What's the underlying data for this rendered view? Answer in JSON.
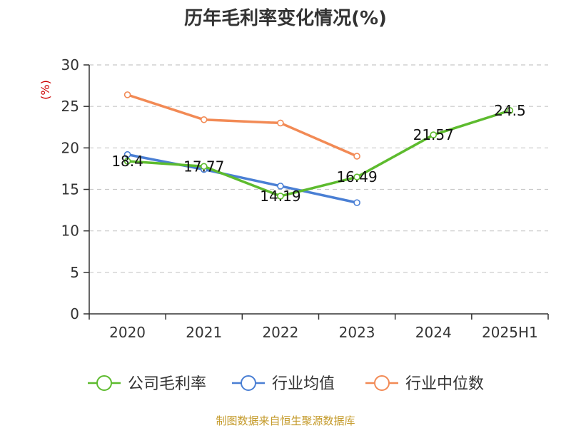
{
  "chart_data": {
    "type": "line",
    "title": "历年毛利率变化情况(%)",
    "ylabel": "(%)",
    "categories": [
      "2020",
      "2021",
      "2022",
      "2023",
      "2024",
      "2025H1"
    ],
    "ylim": [
      0,
      30
    ],
    "yticks": [
      0,
      5,
      10,
      15,
      20,
      25,
      30
    ],
    "grid": true,
    "legend_position": "bottom",
    "series": [
      {
        "name": "公司毛利率",
        "color": "#5dbb2e",
        "values": [
          18.4,
          17.77,
          14.19,
          16.49,
          21.57,
          24.5
        ],
        "labels": [
          "18.4",
          "17.77",
          "14.19",
          "16.49",
          "21.57",
          "24.5"
        ]
      },
      {
        "name": "行业均值",
        "color": "#4a7fd4",
        "values": [
          19.2,
          17.4,
          15.4,
          13.4,
          null,
          null
        ]
      },
      {
        "name": "行业中位数",
        "color": "#f28a55",
        "values": [
          26.4,
          23.4,
          23.0,
          19.0,
          null,
          null
        ]
      }
    ]
  },
  "footer": {
    "source": "制图数据来自恒生聚源数据库"
  }
}
